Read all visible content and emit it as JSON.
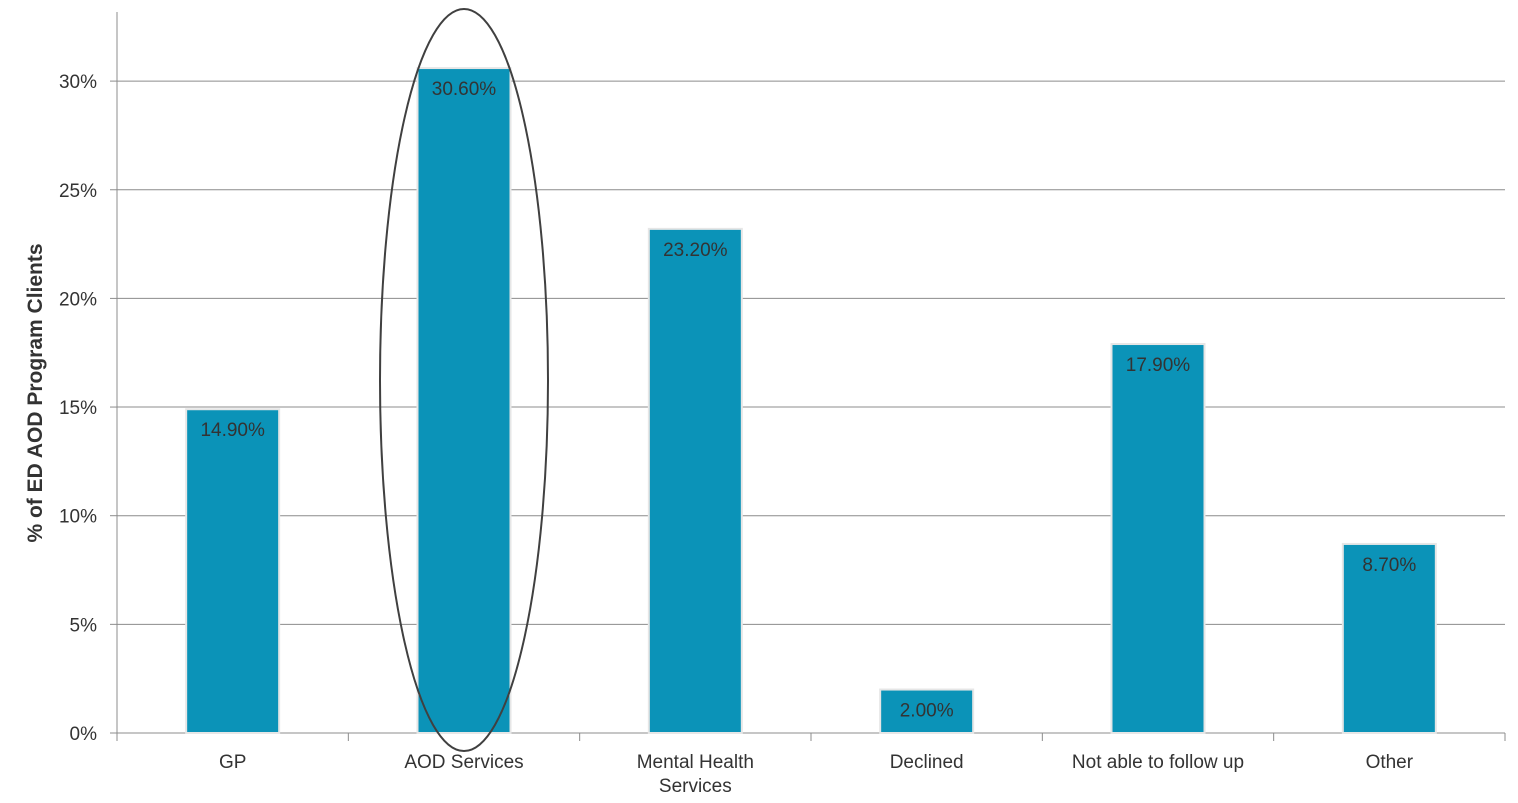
{
  "chart_data": {
    "type": "bar",
    "categories": [
      "GP",
      "AOD Services",
      "Mental Health Services",
      "Declined",
      "Not able to follow up",
      "Other"
    ],
    "category_label_lines": [
      [
        "GP"
      ],
      [
        "AOD Services"
      ],
      [
        "Mental Health",
        "Services"
      ],
      [
        "Declined"
      ],
      [
        "Not able to follow up"
      ],
      [
        "Other"
      ]
    ],
    "values": [
      14.9,
      30.6,
      23.2,
      2.0,
      17.9,
      8.7
    ],
    "data_labels": [
      "14.90%",
      "30.60%",
      "23.20%",
      "2.00%",
      "17.90%",
      "8.70%"
    ],
    "title": "",
    "xlabel": "",
    "ylabel": "% of ED AOD Program Clients",
    "ylim": [
      0,
      30
    ],
    "yticks": [
      0,
      5,
      10,
      15,
      20,
      25,
      30
    ],
    "ytick_labels": [
      "0%",
      "5%",
      "10%",
      "15%",
      "20%",
      "25%",
      "30%"
    ],
    "grid": true,
    "highlighted_category": "AOD Services",
    "colors": {
      "bar": "#0b93b8",
      "bar_edge": "#e6e6e6",
      "grid": "#8c8c8c",
      "text": "#333333",
      "ellipse": "#404040"
    }
  }
}
